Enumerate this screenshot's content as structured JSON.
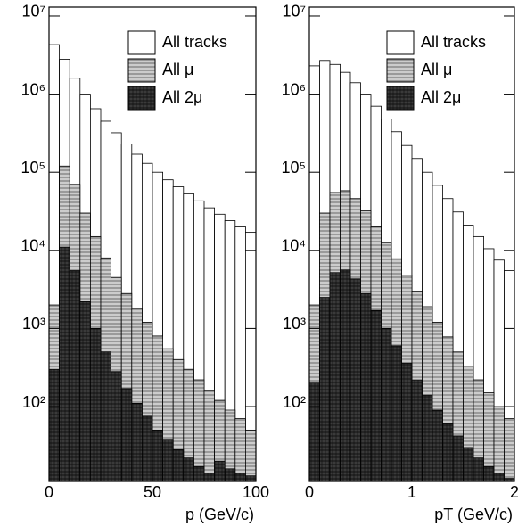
{
  "chart_data": [
    {
      "type": "histogram",
      "x_label": "p (GeV/c)",
      "log_y": true,
      "legend": "upper right",
      "bins": [
        0,
        5,
        10,
        15,
        20,
        25,
        30,
        35,
        40,
        45,
        50,
        55,
        60,
        65,
        70,
        75,
        80,
        85,
        90,
        95,
        100
      ],
      "xlim": [
        0,
        100
      ],
      "xticks": [
        0,
        50,
        100
      ],
      "ylim": [
        11,
        13000000
      ],
      "yticks": [
        {
          "value": 100,
          "label": "10²"
        },
        {
          "value": 1000,
          "label": "10³"
        },
        {
          "value": 10000,
          "label": "10⁴"
        },
        {
          "value": 100000,
          "label": "10⁵"
        },
        {
          "value": 1000000,
          "label": "10⁶"
        },
        {
          "value": 10000000,
          "label": "10⁷"
        }
      ],
      "series": [
        {
          "name": "All tracks",
          "color": "#ffffff",
          "values": [
            4300000,
            2800000,
            1600000,
            1000000,
            650000,
            450000,
            320000,
            230000,
            170000,
            130000,
            100000,
            80000,
            65000,
            53000,
            43000,
            35000,
            29000,
            24000,
            20000,
            17000
          ]
        },
        {
          "name": "All μ",
          "color": "#9a9a9a",
          "values": [
            2000,
            120000,
            70000,
            30000,
            15000,
            8000,
            4500,
            2800,
            1800,
            1200,
            800,
            550,
            400,
            300,
            220,
            160,
            120,
            90,
            70,
            50
          ]
        },
        {
          "name": "All 2μ",
          "color": "#3a3a3a",
          "values": [
            300,
            11000,
            5500,
            2200,
            1000,
            500,
            280,
            170,
            110,
            75,
            50,
            38,
            28,
            22,
            17,
            14,
            20,
            16,
            14,
            13
          ]
        }
      ]
    },
    {
      "type": "histogram",
      "x_label": "pT (GeV/c)",
      "log_y": true,
      "legend": "upper right",
      "bins": [
        0,
        0.1,
        0.2,
        0.3,
        0.4,
        0.5,
        0.6,
        0.7,
        0.8,
        0.9,
        1,
        1.1,
        1.2,
        1.3,
        1.4,
        1.5,
        1.6,
        1.7,
        1.8,
        1.9,
        2
      ],
      "xlim": [
        0,
        2
      ],
      "xticks": [
        0,
        1,
        2
      ],
      "ylim": [
        11,
        13000000
      ],
      "yticks": [
        {
          "value": 100,
          "label": "10²"
        },
        {
          "value": 1000,
          "label": "10³"
        },
        {
          "value": 10000,
          "label": "10⁴"
        },
        {
          "value": 100000,
          "label": "10⁵"
        },
        {
          "value": 1000000,
          "label": "10⁶"
        },
        {
          "value": 10000000,
          "label": "10⁷"
        }
      ],
      "series": [
        {
          "name": "All tracks",
          "color": "#ffffff",
          "values": [
            2300000,
            2700000,
            2400000,
            1900000,
            1400000,
            1000000,
            700000,
            480000,
            330000,
            220000,
            150000,
            100000,
            68000,
            46000,
            31000,
            21000,
            15000,
            10500,
            7500,
            5500
          ]
        },
        {
          "name": "All μ",
          "color": "#9a9a9a",
          "values": [
            2000,
            30000,
            55000,
            58000,
            46000,
            32000,
            20000,
            12500,
            7800,
            4800,
            3000,
            1900,
            1200,
            780,
            500,
            330,
            220,
            150,
            100,
            70
          ]
        },
        {
          "name": "All 2μ",
          "color": "#3a3a3a",
          "values": [
            200,
            2500,
            5200,
            5600,
            4300,
            2800,
            1700,
            1000,
            600,
            360,
            220,
            140,
            90,
            60,
            42,
            30,
            22,
            17,
            14,
            12
          ]
        }
      ]
    }
  ]
}
